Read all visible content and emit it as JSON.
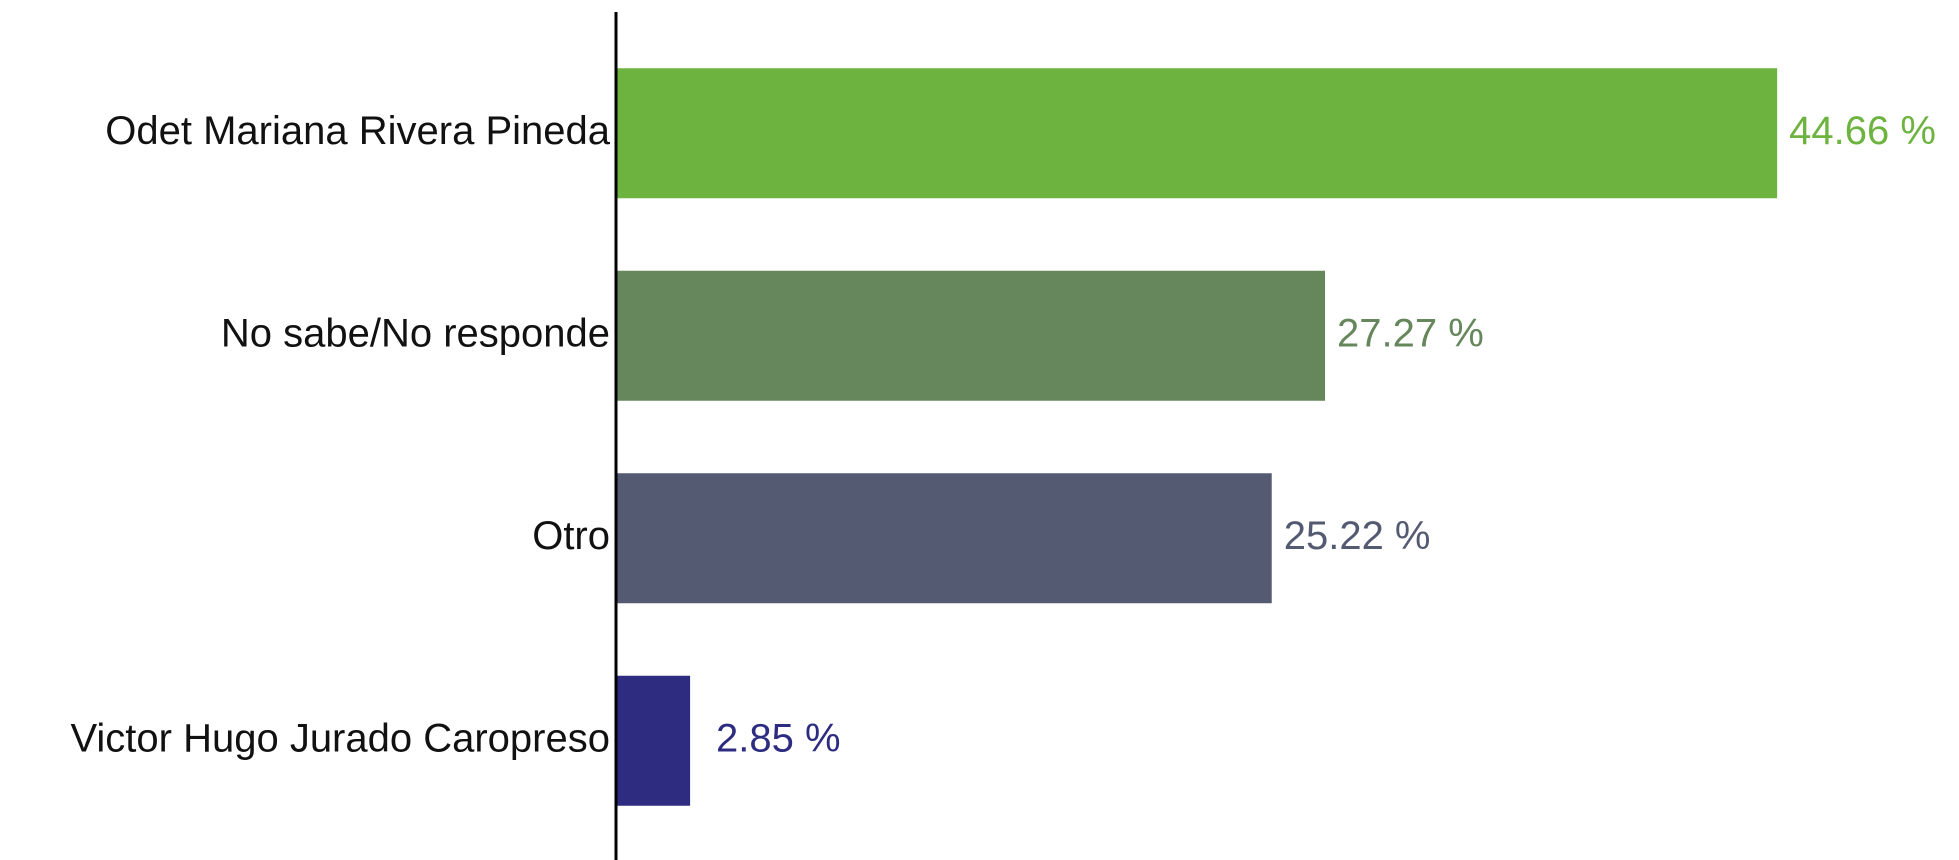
{
  "chart_data": {
    "type": "bar",
    "orientation": "horizontal",
    "categories": [
      "Odet Mariana Rivera Pineda",
      "No sabe/No responde",
      "Otro",
      "Victor Hugo Jurado Caropreso"
    ],
    "values": [
      44.66,
      27.27,
      25.22,
      2.85
    ],
    "value_labels": [
      "44.66 %",
      "27.27 %",
      "25.22 %",
      "2.85 %"
    ],
    "colors": [
      "#6db33f",
      "#66875c",
      "#545a71",
      "#2e2c80"
    ]
  }
}
